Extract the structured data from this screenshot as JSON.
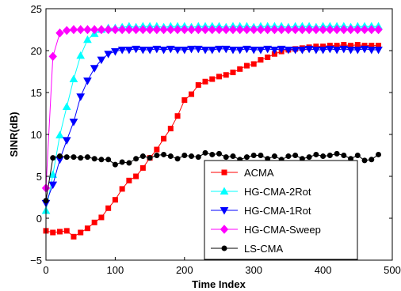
{
  "chart_data": {
    "type": "line",
    "xlabel": "Time Index",
    "ylabel": "SINR(dB)",
    "xlim": [
      0,
      500
    ],
    "ylim": [
      -5,
      25
    ],
    "xticks": [
      0,
      100,
      200,
      300,
      400,
      500
    ],
    "yticks": [
      -5,
      0,
      5,
      10,
      15,
      20,
      25
    ],
    "grid": false,
    "legend_position": "lower-right",
    "series": [
      {
        "name": "ACMA",
        "color": "#ff0000",
        "marker": "square",
        "x": [
          0,
          10,
          20,
          30,
          40,
          50,
          60,
          70,
          80,
          90,
          100,
          110,
          120,
          130,
          140,
          150,
          160,
          170,
          180,
          190,
          200,
          210,
          220,
          230,
          240,
          250,
          260,
          270,
          280,
          290,
          300,
          310,
          320,
          330,
          340,
          350,
          360,
          370,
          380,
          390,
          400,
          410,
          420,
          430,
          440,
          450,
          460,
          470,
          480
        ],
        "values": [
          -1.5,
          -1.7,
          -1.6,
          -1.5,
          -2.2,
          -1.7,
          -1.2,
          -0.5,
          0.1,
          1.2,
          2.2,
          3.5,
          4.5,
          5.0,
          6.0,
          7.2,
          8.2,
          9.5,
          10.7,
          12.2,
          14.1,
          14.8,
          15.9,
          16.3,
          16.6,
          16.9,
          17.1,
          17.4,
          17.8,
          18.2,
          18.4,
          18.9,
          19.2,
          19.6,
          19.9,
          20.1,
          20.2,
          20.3,
          20.4,
          20.5,
          20.5,
          20.6,
          20.6,
          20.7,
          20.6,
          20.7,
          20.6,
          20.6,
          20.6
        ]
      },
      {
        "name": "HG-CMA-2Rot",
        "color": "#00ffff",
        "marker": "triangle-up",
        "x": [
          0,
          10,
          20,
          30,
          40,
          50,
          60,
          70,
          80,
          90,
          100,
          110,
          120,
          130,
          140,
          150,
          160,
          170,
          180,
          190,
          200,
          210,
          220,
          230,
          240,
          250,
          260,
          270,
          280,
          290,
          300,
          310,
          320,
          330,
          340,
          350,
          360,
          370,
          380,
          390,
          400,
          410,
          420,
          430,
          440,
          450,
          460,
          470,
          480
        ],
        "values": [
          0.9,
          5.2,
          9.9,
          13.3,
          16.6,
          19.4,
          21.3,
          22.0,
          22.5,
          22.7,
          22.7,
          22.8,
          22.9,
          22.8,
          22.9,
          22.9,
          22.9,
          22.8,
          22.9,
          22.9,
          22.9,
          22.8,
          22.9,
          22.9,
          22.9,
          22.9,
          22.8,
          22.9,
          22.9,
          22.9,
          22.8,
          22.9,
          22.9,
          22.9,
          22.9,
          22.8,
          22.9,
          22.9,
          22.9,
          22.8,
          22.9,
          22.9,
          22.9,
          22.9,
          22.8,
          22.9,
          22.9,
          22.9,
          22.9
        ]
      },
      {
        "name": "HG-CMA-1Rot",
        "color": "#0000ff",
        "marker": "triangle-down",
        "x": [
          0,
          10,
          20,
          30,
          40,
          50,
          60,
          70,
          80,
          90,
          100,
          110,
          120,
          130,
          140,
          150,
          160,
          170,
          180,
          190,
          200,
          210,
          220,
          230,
          240,
          250,
          260,
          270,
          280,
          290,
          300,
          310,
          320,
          330,
          340,
          350,
          360,
          370,
          380,
          390,
          400,
          410,
          420,
          430,
          440,
          450,
          460,
          470,
          480
        ],
        "values": [
          1.8,
          4.0,
          7.0,
          9.3,
          11.5,
          14.5,
          16.4,
          17.9,
          18.9,
          19.6,
          19.9,
          20.1,
          20.1,
          20.2,
          20.1,
          20.1,
          20.2,
          20.1,
          20.2,
          20.1,
          20.1,
          20.2,
          20.2,
          20.1,
          20.1,
          20.2,
          20.2,
          20.1,
          20.1,
          20.2,
          20.1,
          20.1,
          20.2,
          20.1,
          20.2,
          20.1,
          20.1,
          20.1,
          20.2,
          20.1,
          20.1,
          20.2,
          20.1,
          20.2,
          20.1,
          20.1,
          20.2,
          20.1,
          20.1
        ]
      },
      {
        "name": "HG-CMA-Sweep",
        "color": "#ff00ff",
        "marker": "diamond",
        "x": [
          0,
          10,
          20,
          30,
          40,
          50,
          60,
          70,
          80,
          90,
          100,
          110,
          120,
          130,
          140,
          150,
          160,
          170,
          180,
          190,
          200,
          210,
          220,
          230,
          240,
          250,
          260,
          270,
          280,
          290,
          300,
          310,
          320,
          330,
          340,
          350,
          360,
          370,
          380,
          390,
          400,
          410,
          420,
          430,
          440,
          450,
          460,
          470,
          480
        ],
        "values": [
          3.6,
          19.3,
          22.1,
          22.4,
          22.5,
          22.5,
          22.5,
          22.5,
          22.5,
          22.5,
          22.5,
          22.5,
          22.5,
          22.5,
          22.5,
          22.5,
          22.5,
          22.5,
          22.5,
          22.5,
          22.5,
          22.5,
          22.5,
          22.5,
          22.5,
          22.5,
          22.5,
          22.5,
          22.5,
          22.5,
          22.5,
          22.5,
          22.5,
          22.5,
          22.5,
          22.5,
          22.5,
          22.5,
          22.5,
          22.5,
          22.5,
          22.5,
          22.5,
          22.5,
          22.5,
          22.5,
          22.5,
          22.5,
          22.5
        ]
      },
      {
        "name": "LS-CMA",
        "color": "#000000",
        "marker": "circle",
        "x": [
          0,
          10,
          20,
          30,
          40,
          50,
          60,
          70,
          80,
          90,
          100,
          110,
          120,
          130,
          140,
          150,
          160,
          170,
          180,
          190,
          200,
          210,
          220,
          230,
          240,
          250,
          260,
          270,
          280,
          290,
          300,
          310,
          320,
          330,
          340,
          350,
          360,
          370,
          380,
          390,
          400,
          410,
          420,
          430,
          440,
          450,
          460,
          470,
          480
        ],
        "values": [
          2.1,
          7.2,
          7.4,
          7.3,
          7.3,
          7.2,
          7.3,
          7.1,
          7.0,
          7.0,
          6.4,
          6.7,
          6.6,
          7.1,
          7.4,
          7.2,
          7.5,
          7.6,
          7.4,
          7.1,
          7.5,
          7.4,
          7.3,
          7.8,
          7.6,
          7.7,
          7.3,
          7.4,
          7.0,
          7.3,
          7.5,
          7.5,
          7.1,
          7.4,
          7.0,
          7.4,
          7.5,
          7.1,
          7.3,
          7.6,
          7.4,
          7.5,
          7.7,
          7.5,
          7.1,
          7.5,
          6.9,
          7.0,
          7.6
        ]
      }
    ]
  }
}
